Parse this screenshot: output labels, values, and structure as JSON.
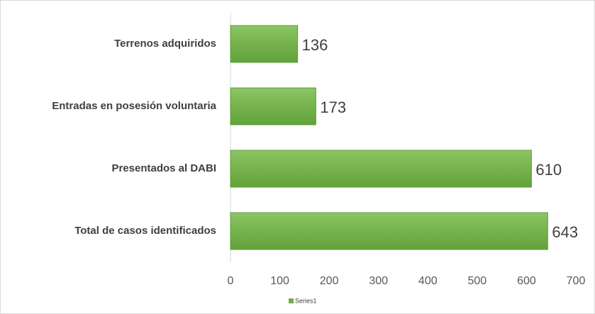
{
  "chart_data": {
    "type": "bar",
    "orientation": "horizontal",
    "categories": [
      "Terrenos adquiridos",
      "Entradas en posesión voluntaria",
      "Presentados al DABI",
      "Total de casos identificados"
    ],
    "series": [
      {
        "name": "Series1",
        "color": "#70ad47",
        "values": [
          136,
          173,
          610,
          643
        ]
      }
    ],
    "xlim": [
      0,
      700
    ],
    "xticks": [
      0,
      100,
      200,
      300,
      400,
      500,
      600,
      700
    ],
    "grid": false,
    "legend": "bottom"
  }
}
